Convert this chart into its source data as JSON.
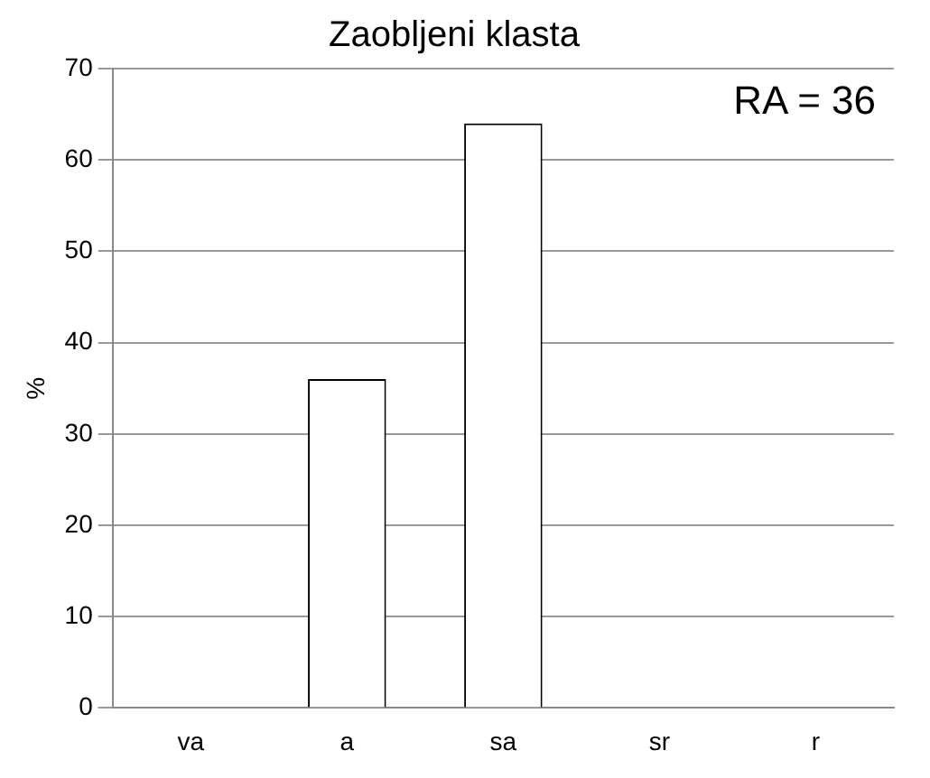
{
  "chart_data": {
    "type": "bar",
    "title": "Zaobljeni klasta",
    "ylabel": "%",
    "categories": [
      "va",
      "a",
      "sa",
      "sr",
      "r"
    ],
    "values": [
      0,
      36,
      64,
      0,
      0
    ],
    "color": "#ffffff",
    "ylim": [
      0,
      70
    ],
    "yticks": [
      0,
      10,
      20,
      30,
      40,
      50,
      60,
      70
    ],
    "grid": "y",
    "annotations": [
      "RA = 36"
    ]
  }
}
